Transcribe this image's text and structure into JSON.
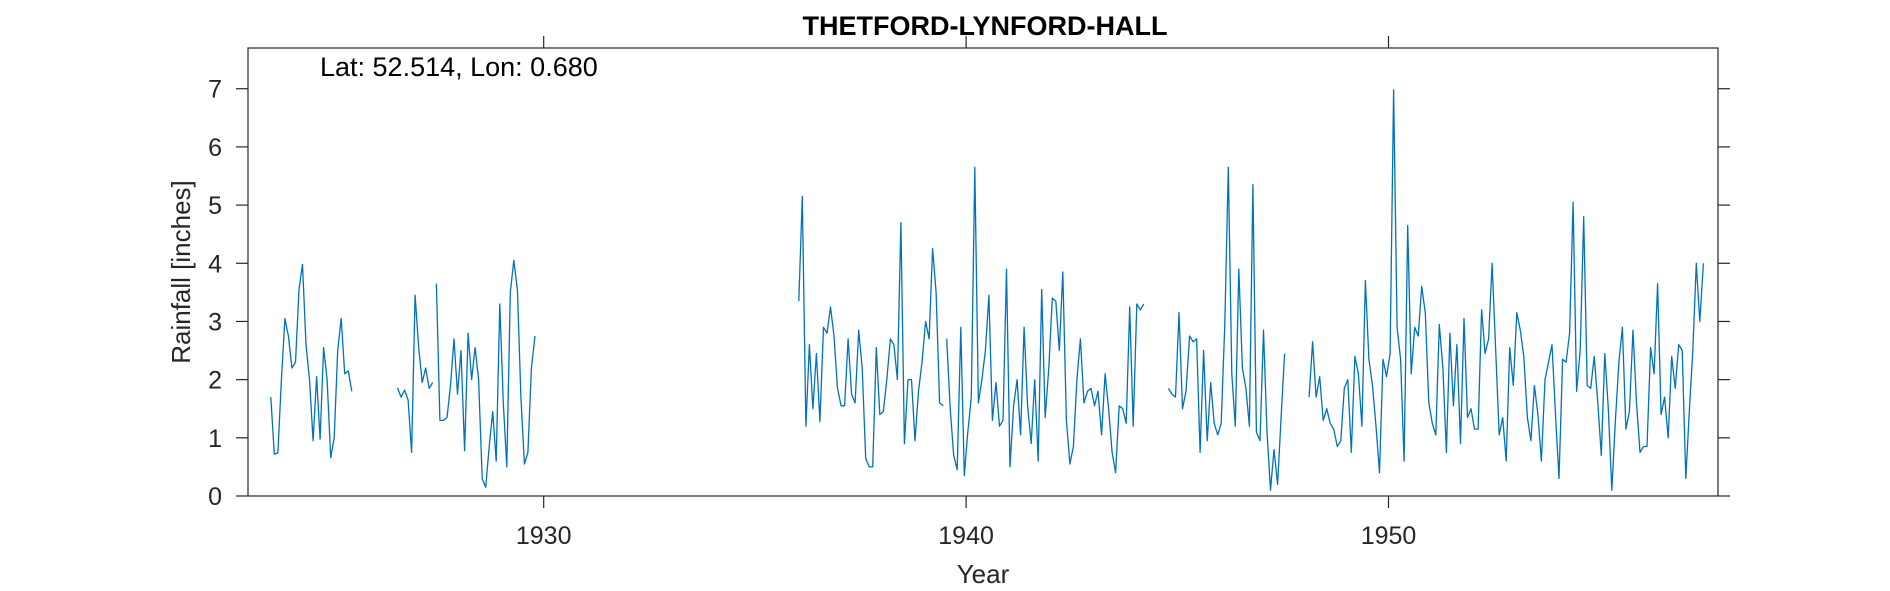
{
  "chart_data": {
    "type": "line",
    "title": "THETFORD-LYNFORD-HALL",
    "annotation": "Lat: 52.514, Lon: 0.680",
    "xlabel": "Year",
    "ylabel": "Rainfall [inches]",
    "xlim": [
      1923.0,
      1957.8
    ],
    "ylim": [
      0,
      7.7
    ],
    "xticks": [
      1930,
      1940,
      1950
    ],
    "yticks": [
      0,
      1,
      2,
      3,
      4,
      5,
      6,
      7
    ],
    "grid": false,
    "line_color": "#0072BD",
    "series": [
      {
        "segments": [
          {
            "start": 1923.54,
            "values": [
              1.7,
              0.72,
              0.74,
              2.0,
              3.05,
              2.75,
              2.2,
              2.3,
              3.55,
              3.98,
              2.6,
              2.0,
              0.95,
              2.05,
              0.98,
              2.55,
              2.0,
              0.66,
              1.0,
              2.5,
              3.05,
              2.1,
              2.15,
              1.8
            ]
          },
          {
            "start": 1926.54,
            "values": [
              1.86,
              1.7,
              1.82,
              1.65,
              0.75,
              3.45,
              2.55,
              1.95,
              2.2,
              1.85,
              1.95
            ]
          },
          {
            "start": 1927.46,
            "values": [
              3.65,
              1.3,
              1.3,
              1.35,
              1.9,
              2.7,
              1.75,
              2.5,
              0.78,
              2.8,
              2.0,
              2.55,
              2.0,
              0.3,
              0.15,
              0.85,
              1.45,
              0.6,
              3.3,
              1.6,
              0.5,
              3.5,
              4.05,
              3.55,
              1.7,
              0.55,
              0.75,
              2.2,
              2.75
            ]
          },
          {
            "start": 1936.04,
            "values": [
              3.35,
              5.15,
              1.2,
              2.6,
              1.5,
              2.45,
              1.28,
              2.9,
              2.8,
              3.25,
              2.75,
              1.85,
              1.55,
              1.55,
              2.7,
              1.75,
              1.6,
              2.85,
              2.2,
              0.65,
              0.5,
              0.5,
              2.55,
              1.4,
              1.45,
              2.0,
              2.7,
              2.6,
              2.0,
              4.7,
              0.9,
              2.0,
              2.0,
              0.95,
              1.8,
              2.3,
              3.0,
              2.7,
              4.25,
              3.5,
              1.6,
              1.55
            ]
          },
          {
            "start": 1939.54,
            "values": [
              2.7,
              1.5,
              0.7,
              0.45,
              2.9,
              0.35,
              1.1,
              1.7,
              5.65,
              1.6,
              2.0,
              2.5,
              3.45,
              1.3,
              1.95,
              1.2,
              1.3,
              3.9,
              0.5,
              1.55,
              2.0,
              1.05,
              2.9,
              1.55,
              0.9,
              2.0,
              0.6,
              3.55,
              1.35,
              2.2,
              3.4,
              3.35,
              2.5,
              3.85,
              1.3,
              0.55,
              0.85,
              2.0,
              2.7,
              1.6,
              1.8,
              1.85,
              1.55,
              1.8,
              1.05,
              2.1,
              1.5,
              0.75,
              0.4,
              1.55,
              1.5,
              1.25,
              3.25,
              1.2,
              3.3,
              3.2,
              3.3
            ]
          },
          {
            "start": 1944.79,
            "values": [
              1.85,
              1.75,
              1.7,
              3.15,
              1.5,
              1.8,
              2.75,
              2.65,
              2.7,
              0.75,
              2.5,
              0.95,
              1.95,
              1.25,
              1.05,
              1.25,
              2.95,
              5.65,
              2.1,
              1.2,
              3.9,
              2.2,
              1.85,
              1.2,
              5.35,
              1.1,
              0.95,
              2.85,
              1.1,
              0.1,
              0.8,
              0.2,
              1.35,
              2.45
            ]
          },
          {
            "start": 1948.12,
            "values": [
              1.7,
              2.65,
              1.7,
              2.05,
              1.3,
              1.5,
              1.25,
              1.15,
              0.85,
              0.95,
              1.85,
              2.0,
              0.75,
              2.4,
              2.1,
              1.2,
              3.7,
              2.35,
              1.9,
              1.2,
              0.4,
              2.35,
              2.05,
              2.45,
              6.98,
              2.9,
              2.35,
              0.6,
              4.65,
              2.1,
              2.9,
              2.75,
              3.6,
              3.15,
              1.6,
              1.25,
              1.05,
              2.95,
              2.2,
              0.75,
              2.8,
              1.55,
              2.6,
              0.9,
              3.05,
              1.35,
              1.5,
              1.15,
              1.15,
              3.2,
              2.45,
              2.7,
              4.0,
              2.5,
              1.05,
              1.35,
              0.6,
              2.55,
              1.9,
              3.15,
              2.85,
              2.4,
              1.35,
              0.95,
              1.9,
              1.4,
              0.6,
              2.0,
              2.3,
              2.6,
              1.4,
              0.3,
              2.35,
              2.3,
              2.8,
              5.05,
              1.8,
              2.5,
              4.8,
              1.9,
              1.85,
              2.4,
              1.6,
              0.7,
              2.45,
              1.5,
              0.1,
              1.3,
              2.3,
              2.9,
              1.15,
              1.45,
              2.85,
              1.6,
              0.75,
              0.85,
              0.85,
              2.55,
              2.1,
              3.65,
              1.4,
              1.7,
              1.0,
              2.4,
              1.85,
              2.6,
              2.5,
              0.3,
              1.45,
              2.5,
              4.0,
              3.0,
              4.0
            ]
          }
        ]
      }
    ]
  }
}
